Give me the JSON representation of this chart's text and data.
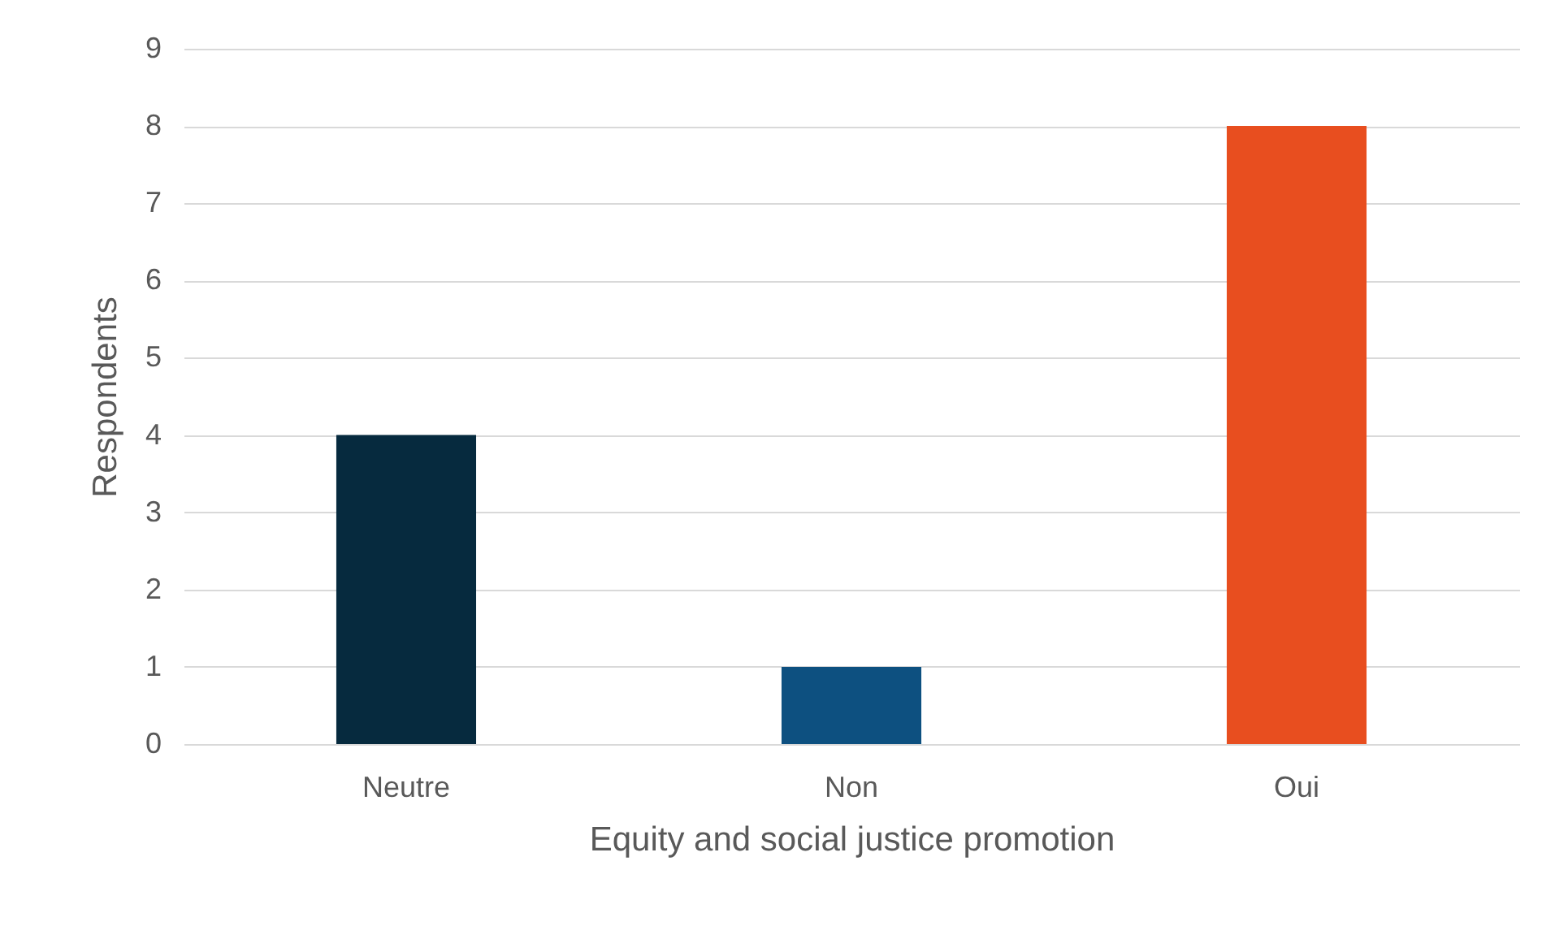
{
  "chart_data": {
    "type": "bar",
    "xlabel": "Equity and social justice promotion",
    "ylabel": "Respondents",
    "categories": [
      "Neutre",
      "Non",
      "Oui"
    ],
    "values": [
      4,
      1,
      8
    ],
    "colors": [
      "#062a3e",
      "#0d5080",
      "#e84e1f"
    ],
    "ylim": [
      0,
      9
    ],
    "yticks": [
      0,
      1,
      2,
      3,
      4,
      5,
      6,
      7,
      8,
      9
    ],
    "grid": "y",
    "legend": false
  }
}
